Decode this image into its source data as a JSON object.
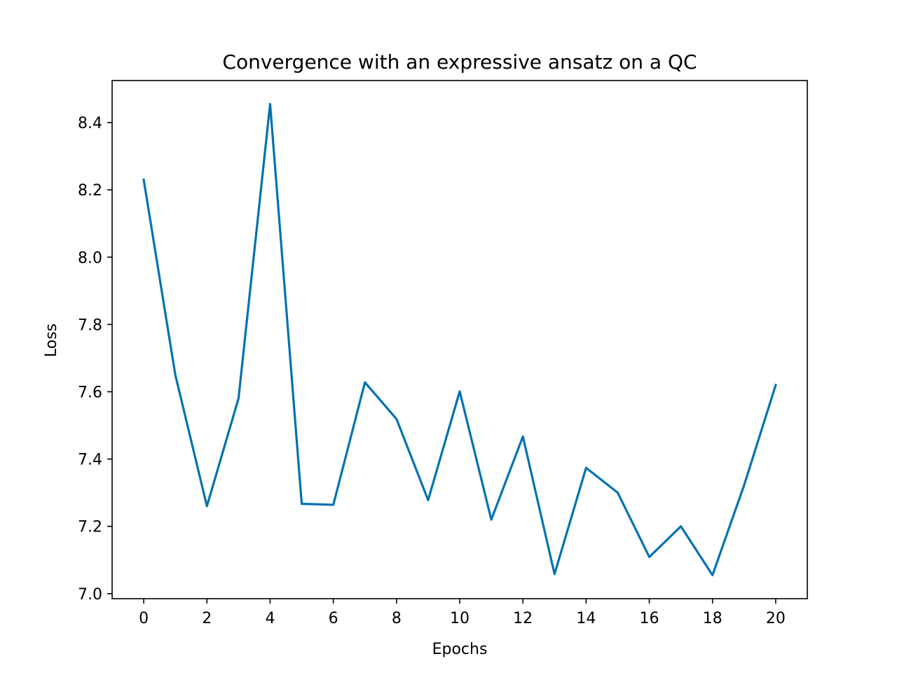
{
  "chart_data": {
    "type": "line",
    "title": "Convergence with an expressive ansatz on a QC",
    "xlabel": "Epochs",
    "ylabel": "Loss",
    "xlim": [
      -1,
      21
    ],
    "ylim": [
      6.985,
      8.525
    ],
    "xticks": [
      0,
      2,
      4,
      6,
      8,
      10,
      12,
      14,
      16,
      18,
      20
    ],
    "xtick_labels": [
      "0",
      "2",
      "4",
      "6",
      "8",
      "10",
      "12",
      "14",
      "16",
      "18",
      "20"
    ],
    "yticks": [
      7.0,
      7.2,
      7.4,
      7.6,
      7.8,
      8.0,
      8.2,
      8.4
    ],
    "ytick_labels": [
      "7.0",
      "7.2",
      "7.4",
      "7.6",
      "7.8",
      "8.0",
      "8.2",
      "8.4"
    ],
    "grid": false,
    "series": [
      {
        "color": "#0072B2",
        "x": [
          0,
          1,
          2,
          3,
          4,
          5,
          6,
          7,
          8,
          9,
          10,
          11,
          12,
          13,
          14,
          15,
          16,
          17,
          18,
          19,
          20
        ],
        "y": [
          8.23,
          7.65,
          7.26,
          7.58,
          8.455,
          7.267,
          7.264,
          7.628,
          7.519,
          7.278,
          7.601,
          7.22,
          7.467,
          7.058,
          7.374,
          7.3,
          7.109,
          7.2,
          7.055,
          7.322,
          7.62
        ]
      }
    ]
  }
}
